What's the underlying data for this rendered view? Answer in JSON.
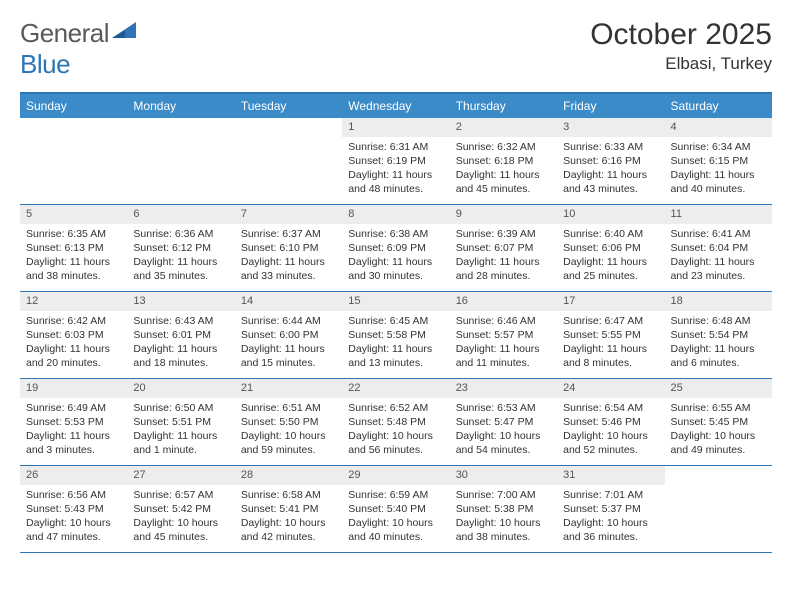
{
  "logo": {
    "word1": "General",
    "word2": "Blue",
    "text_color": "#5a5a5a",
    "accent_color": "#2e75b6"
  },
  "header": {
    "month_title": "October 2025",
    "location": "Elbasi, Turkey"
  },
  "styles": {
    "header_bg": "#3b8bc9",
    "border_color": "#2e75b6",
    "daynum_bg": "#ededed",
    "text_color": "#333333",
    "body_font_size": 10.5,
    "header_font_size": 12,
    "title_font_size": 30,
    "location_font_size": 17
  },
  "day_names": [
    "Sunday",
    "Monday",
    "Tuesday",
    "Wednesday",
    "Thursday",
    "Friday",
    "Saturday"
  ],
  "weeks": [
    [
      {
        "n": "",
        "sr": "",
        "ss": "",
        "dl": ""
      },
      {
        "n": "",
        "sr": "",
        "ss": "",
        "dl": ""
      },
      {
        "n": "",
        "sr": "",
        "ss": "",
        "dl": ""
      },
      {
        "n": "1",
        "sr": "Sunrise: 6:31 AM",
        "ss": "Sunset: 6:19 PM",
        "dl": "Daylight: 11 hours and 48 minutes."
      },
      {
        "n": "2",
        "sr": "Sunrise: 6:32 AM",
        "ss": "Sunset: 6:18 PM",
        "dl": "Daylight: 11 hours and 45 minutes."
      },
      {
        "n": "3",
        "sr": "Sunrise: 6:33 AM",
        "ss": "Sunset: 6:16 PM",
        "dl": "Daylight: 11 hours and 43 minutes."
      },
      {
        "n": "4",
        "sr": "Sunrise: 6:34 AM",
        "ss": "Sunset: 6:15 PM",
        "dl": "Daylight: 11 hours and 40 minutes."
      }
    ],
    [
      {
        "n": "5",
        "sr": "Sunrise: 6:35 AM",
        "ss": "Sunset: 6:13 PM",
        "dl": "Daylight: 11 hours and 38 minutes."
      },
      {
        "n": "6",
        "sr": "Sunrise: 6:36 AM",
        "ss": "Sunset: 6:12 PM",
        "dl": "Daylight: 11 hours and 35 minutes."
      },
      {
        "n": "7",
        "sr": "Sunrise: 6:37 AM",
        "ss": "Sunset: 6:10 PM",
        "dl": "Daylight: 11 hours and 33 minutes."
      },
      {
        "n": "8",
        "sr": "Sunrise: 6:38 AM",
        "ss": "Sunset: 6:09 PM",
        "dl": "Daylight: 11 hours and 30 minutes."
      },
      {
        "n": "9",
        "sr": "Sunrise: 6:39 AM",
        "ss": "Sunset: 6:07 PM",
        "dl": "Daylight: 11 hours and 28 minutes."
      },
      {
        "n": "10",
        "sr": "Sunrise: 6:40 AM",
        "ss": "Sunset: 6:06 PM",
        "dl": "Daylight: 11 hours and 25 minutes."
      },
      {
        "n": "11",
        "sr": "Sunrise: 6:41 AM",
        "ss": "Sunset: 6:04 PM",
        "dl": "Daylight: 11 hours and 23 minutes."
      }
    ],
    [
      {
        "n": "12",
        "sr": "Sunrise: 6:42 AM",
        "ss": "Sunset: 6:03 PM",
        "dl": "Daylight: 11 hours and 20 minutes."
      },
      {
        "n": "13",
        "sr": "Sunrise: 6:43 AM",
        "ss": "Sunset: 6:01 PM",
        "dl": "Daylight: 11 hours and 18 minutes."
      },
      {
        "n": "14",
        "sr": "Sunrise: 6:44 AM",
        "ss": "Sunset: 6:00 PM",
        "dl": "Daylight: 11 hours and 15 minutes."
      },
      {
        "n": "15",
        "sr": "Sunrise: 6:45 AM",
        "ss": "Sunset: 5:58 PM",
        "dl": "Daylight: 11 hours and 13 minutes."
      },
      {
        "n": "16",
        "sr": "Sunrise: 6:46 AM",
        "ss": "Sunset: 5:57 PM",
        "dl": "Daylight: 11 hours and 11 minutes."
      },
      {
        "n": "17",
        "sr": "Sunrise: 6:47 AM",
        "ss": "Sunset: 5:55 PM",
        "dl": "Daylight: 11 hours and 8 minutes."
      },
      {
        "n": "18",
        "sr": "Sunrise: 6:48 AM",
        "ss": "Sunset: 5:54 PM",
        "dl": "Daylight: 11 hours and 6 minutes."
      }
    ],
    [
      {
        "n": "19",
        "sr": "Sunrise: 6:49 AM",
        "ss": "Sunset: 5:53 PM",
        "dl": "Daylight: 11 hours and 3 minutes."
      },
      {
        "n": "20",
        "sr": "Sunrise: 6:50 AM",
        "ss": "Sunset: 5:51 PM",
        "dl": "Daylight: 11 hours and 1 minute."
      },
      {
        "n": "21",
        "sr": "Sunrise: 6:51 AM",
        "ss": "Sunset: 5:50 PM",
        "dl": "Daylight: 10 hours and 59 minutes."
      },
      {
        "n": "22",
        "sr": "Sunrise: 6:52 AM",
        "ss": "Sunset: 5:48 PM",
        "dl": "Daylight: 10 hours and 56 minutes."
      },
      {
        "n": "23",
        "sr": "Sunrise: 6:53 AM",
        "ss": "Sunset: 5:47 PM",
        "dl": "Daylight: 10 hours and 54 minutes."
      },
      {
        "n": "24",
        "sr": "Sunrise: 6:54 AM",
        "ss": "Sunset: 5:46 PM",
        "dl": "Daylight: 10 hours and 52 minutes."
      },
      {
        "n": "25",
        "sr": "Sunrise: 6:55 AM",
        "ss": "Sunset: 5:45 PM",
        "dl": "Daylight: 10 hours and 49 minutes."
      }
    ],
    [
      {
        "n": "26",
        "sr": "Sunrise: 6:56 AM",
        "ss": "Sunset: 5:43 PM",
        "dl": "Daylight: 10 hours and 47 minutes."
      },
      {
        "n": "27",
        "sr": "Sunrise: 6:57 AM",
        "ss": "Sunset: 5:42 PM",
        "dl": "Daylight: 10 hours and 45 minutes."
      },
      {
        "n": "28",
        "sr": "Sunrise: 6:58 AM",
        "ss": "Sunset: 5:41 PM",
        "dl": "Daylight: 10 hours and 42 minutes."
      },
      {
        "n": "29",
        "sr": "Sunrise: 6:59 AM",
        "ss": "Sunset: 5:40 PM",
        "dl": "Daylight: 10 hours and 40 minutes."
      },
      {
        "n": "30",
        "sr": "Sunrise: 7:00 AM",
        "ss": "Sunset: 5:38 PM",
        "dl": "Daylight: 10 hours and 38 minutes."
      },
      {
        "n": "31",
        "sr": "Sunrise: 7:01 AM",
        "ss": "Sunset: 5:37 PM",
        "dl": "Daylight: 10 hours and 36 minutes."
      },
      {
        "n": "",
        "sr": "",
        "ss": "",
        "dl": ""
      }
    ]
  ]
}
